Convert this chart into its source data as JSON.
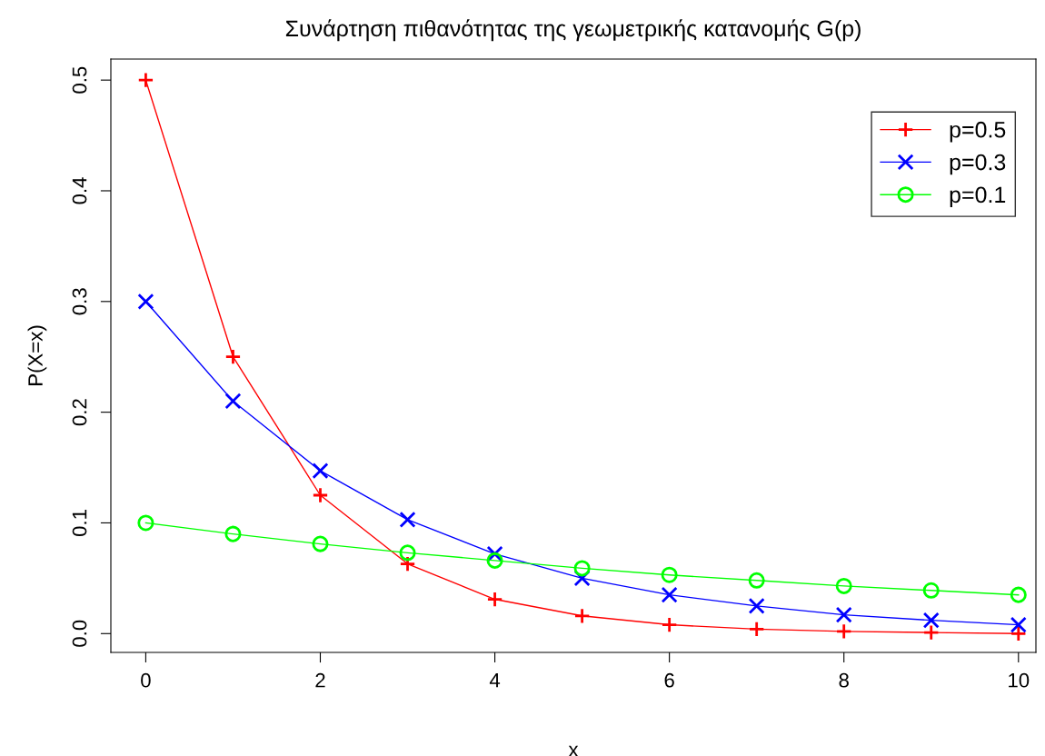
{
  "chart_data": {
    "type": "line",
    "title": "Συνάρτηση πιθανότητας της γεωμετρικής κατανομής G(p)",
    "xlabel": "x",
    "ylabel": "P(X=x)",
    "x": [
      0,
      1,
      2,
      3,
      4,
      5,
      6,
      7,
      8,
      9,
      10
    ],
    "series": [
      {
        "name": "p=0.5",
        "color": "#ff0000",
        "marker": "cross",
        "values": [
          0.5,
          0.25,
          0.125,
          0.063,
          0.031,
          0.016,
          0.008,
          0.004,
          0.002,
          0.001,
          0.0
        ]
      },
      {
        "name": "p=0.3",
        "color": "#0000ff",
        "marker": "x",
        "values": [
          0.3,
          0.21,
          0.147,
          0.103,
          0.072,
          0.05,
          0.035,
          0.025,
          0.017,
          0.012,
          0.008
        ]
      },
      {
        "name": "p=0.1",
        "color": "#00ff00",
        "marker": "circle",
        "values": [
          0.1,
          0.09,
          0.081,
          0.073,
          0.066,
          0.059,
          0.053,
          0.048,
          0.043,
          0.039,
          0.035
        ]
      }
    ],
    "xlim": [
      -0.4,
      10.2
    ],
    "ylim": [
      -0.017,
      0.519
    ],
    "xticks": [
      0,
      2,
      4,
      6,
      8,
      10
    ],
    "yticks": [
      {
        "value": 0,
        "label": "0.0"
      },
      0.1,
      0.2,
      0.3,
      0.4,
      0.5
    ],
    "grid": false,
    "legend": "top right",
    "line_style": "solid"
  }
}
